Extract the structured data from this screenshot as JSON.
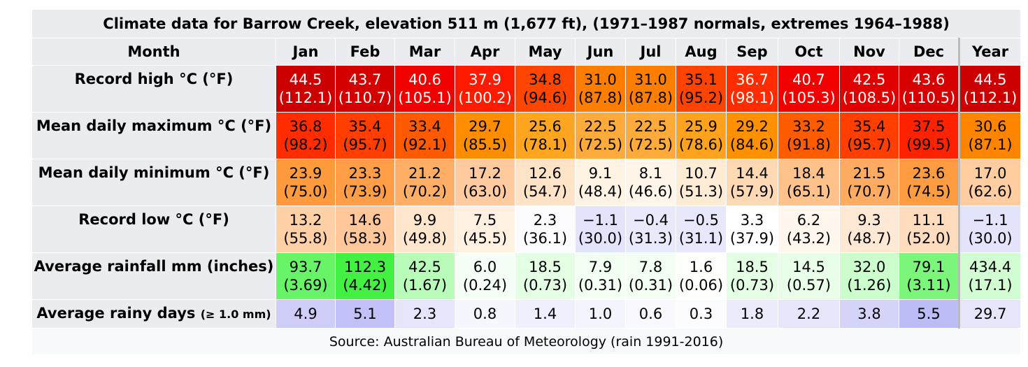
{
  "title": "Climate data for Barrow Creek, elevation 511 m (1,677 ft), (1971–1987 normals, extremes 1964–1988)",
  "header": {
    "month_label": "Month",
    "columns": [
      "Jan",
      "Feb",
      "Mar",
      "Apr",
      "May",
      "Jun",
      "Jul",
      "Aug",
      "Sep",
      "Oct",
      "Nov",
      "Dec",
      "Year"
    ]
  },
  "rows": [
    {
      "label": "Record high °C (°F)",
      "label_small": "",
      "cells": [
        {
          "c": "44.5",
          "f": "(112.1)",
          "bg": "#cc0000",
          "fg": "#ffffff"
        },
        {
          "c": "43.7",
          "f": "(110.7)",
          "bg": "#d40000",
          "fg": "#ffffff"
        },
        {
          "c": "40.6",
          "f": "(105.1)",
          "bg": "#f20000",
          "fg": "#ffffff"
        },
        {
          "c": "37.9",
          "f": "(100.2)",
          "bg": "#ff1a00",
          "fg": "#ffffff"
        },
        {
          "c": "34.8",
          "f": "(94.6)",
          "bg": "#ff4600",
          "fg": "#000000"
        },
        {
          "c": "31.0",
          "f": "(87.8)",
          "bg": "#ff7e00",
          "fg": "#000000"
        },
        {
          "c": "31.0",
          "f": "(87.8)",
          "bg": "#ff7e00",
          "fg": "#000000"
        },
        {
          "c": "35.1",
          "f": "(95.2)",
          "bg": "#ff4300",
          "fg": "#000000"
        },
        {
          "c": "36.7",
          "f": "(98.1)",
          "bg": "#ff2c00",
          "fg": "#ffffff"
        },
        {
          "c": "40.7",
          "f": "(105.3)",
          "bg": "#f20000",
          "fg": "#ffffff"
        },
        {
          "c": "42.5",
          "f": "(108.5)",
          "bg": "#e10000",
          "fg": "#ffffff"
        },
        {
          "c": "43.6",
          "f": "(110.5)",
          "bg": "#d60000",
          "fg": "#ffffff"
        },
        {
          "c": "44.5",
          "f": "(112.1)",
          "bg": "#cc0000",
          "fg": "#ffffff"
        }
      ]
    },
    {
      "label": "Mean daily maximum °C (°F)",
      "label_small": "",
      "cells": [
        {
          "c": "36.8",
          "f": "(98.2)",
          "bg": "#ff2c00",
          "fg": "#000000"
        },
        {
          "c": "35.4",
          "f": "(95.7)",
          "bg": "#ff3e00",
          "fg": "#000000"
        },
        {
          "c": "33.4",
          "f": "(92.1)",
          "bg": "#ff5a00",
          "fg": "#000000"
        },
        {
          "c": "29.7",
          "f": "(85.5)",
          "bg": "#ff8d00",
          "fg": "#000000"
        },
        {
          "c": "25.6",
          "f": "(78.1)",
          "bg": "#ffa520",
          "fg": "#000000"
        },
        {
          "c": "22.5",
          "f": "(72.5)",
          "bg": "#ffab3c",
          "fg": "#000000"
        },
        {
          "c": "22.5",
          "f": "(72.5)",
          "bg": "#ffab3c",
          "fg": "#000000"
        },
        {
          "c": "25.9",
          "f": "(78.6)",
          "bg": "#ffa21d",
          "fg": "#000000"
        },
        {
          "c": "29.2",
          "f": "(84.6)",
          "bg": "#ff9000",
          "fg": "#000000"
        },
        {
          "c": "33.2",
          "f": "(91.8)",
          "bg": "#ff5c00",
          "fg": "#000000"
        },
        {
          "c": "35.4",
          "f": "(95.7)",
          "bg": "#ff3e00",
          "fg": "#000000"
        },
        {
          "c": "37.5",
          "f": "(99.5)",
          "bg": "#ff2200",
          "fg": "#000000"
        },
        {
          "c": "30.6",
          "f": "(87.1)",
          "bg": "#ff8400",
          "fg": "#000000"
        }
      ]
    },
    {
      "label": "Mean daily minimum °C (°F)",
      "label_small": "",
      "cells": [
        {
          "c": "23.9",
          "f": "(75.0)",
          "bg": "#ff9a3d",
          "fg": "#000000"
        },
        {
          "c": "23.3",
          "f": "(73.9)",
          "bg": "#ff9e46",
          "fg": "#000000"
        },
        {
          "c": "21.2",
          "f": "(70.2)",
          "bg": "#ffae66",
          "fg": "#000000"
        },
        {
          "c": "17.2",
          "f": "(63.0)",
          "bg": "#ffcb9e",
          "fg": "#000000"
        },
        {
          "c": "12.6",
          "f": "(54.7)",
          "bg": "#ffe3c6",
          "fg": "#000000"
        },
        {
          "c": "9.1",
          "f": "(48.4)",
          "bg": "#fff3e3",
          "fg": "#000000"
        },
        {
          "c": "8.1",
          "f": "(46.6)",
          "bg": "#fff6e9",
          "fg": "#000000"
        },
        {
          "c": "10.7",
          "f": "(51.3)",
          "bg": "#ffecd5",
          "fg": "#000000"
        },
        {
          "c": "14.4",
          "f": "(57.9)",
          "bg": "#ffd9b3",
          "fg": "#000000"
        },
        {
          "c": "18.4",
          "f": "(65.1)",
          "bg": "#ffc28b",
          "fg": "#000000"
        },
        {
          "c": "21.5",
          "f": "(70.7)",
          "bg": "#ffab61",
          "fg": "#000000"
        },
        {
          "c": "23.6",
          "f": "(74.5)",
          "bg": "#ff9c41",
          "fg": "#000000"
        },
        {
          "c": "17.0",
          "f": "(62.6)",
          "bg": "#ffcd9f",
          "fg": "#000000"
        }
      ]
    },
    {
      "label": "Record low °C (°F)",
      "label_small": "",
      "cells": [
        {
          "c": "13.2",
          "f": "(55.8)",
          "bg": "#ffd0a6",
          "fg": "#000000"
        },
        {
          "c": "14.6",
          "f": "(58.3)",
          "bg": "#ffc79a",
          "fg": "#000000"
        },
        {
          "c": "9.9",
          "f": "(49.8)",
          "bg": "#ffe6cd",
          "fg": "#000000"
        },
        {
          "c": "7.5",
          "f": "(45.5)",
          "bg": "#fff1e2",
          "fg": "#000000"
        },
        {
          "c": "2.3",
          "f": "(36.1)",
          "bg": "#fcfcfe",
          "fg": "#000000"
        },
        {
          "c": "−1.1",
          "f": "(30.0)",
          "bg": "#e3e3fb",
          "fg": "#000000"
        },
        {
          "c": "−0.4",
          "f": "(31.3)",
          "bg": "#e9e9fc",
          "fg": "#000000"
        },
        {
          "c": "−0.5",
          "f": "(31.1)",
          "bg": "#e8e8fc",
          "fg": "#000000"
        },
        {
          "c": "3.3",
          "f": "(37.9)",
          "bg": "#ffffff",
          "fg": "#000000"
        },
        {
          "c": "6.2",
          "f": "(43.2)",
          "bg": "#fff7ee",
          "fg": "#000000"
        },
        {
          "c": "9.3",
          "f": "(48.7)",
          "bg": "#ffe9d4",
          "fg": "#000000"
        },
        {
          "c": "11.1",
          "f": "(52.0)",
          "bg": "#ffdcbd",
          "fg": "#000000"
        },
        {
          "c": "−1.1",
          "f": "(30.0)",
          "bg": "#e3e3fb",
          "fg": "#000000"
        }
      ]
    },
    {
      "label": "Average rainfall mm (inches)",
      "label_small": "",
      "cells": [
        {
          "c": "93.7",
          "f": "(3.69)",
          "bg": "#67f567",
          "fg": "#000000"
        },
        {
          "c": "112.3",
          "f": "(4.42)",
          "bg": "#43f143",
          "fg": "#000000"
        },
        {
          "c": "42.5",
          "f": "(1.67)",
          "bg": "#b9fbb9",
          "fg": "#000000"
        },
        {
          "c": "6.0",
          "f": "(0.24)",
          "bg": "#f6fff6",
          "fg": "#000000"
        },
        {
          "c": "18.5",
          "f": "(0.73)",
          "bg": "#e3fee3",
          "fg": "#000000"
        },
        {
          "c": "7.9",
          "f": "(0.31)",
          "bg": "#f3fff3",
          "fg": "#000000"
        },
        {
          "c": "7.8",
          "f": "(0.31)",
          "bg": "#f3fff3",
          "fg": "#000000"
        },
        {
          "c": "1.6",
          "f": "(0.06)",
          "bg": "#fdfffd",
          "fg": "#000000"
        },
        {
          "c": "18.5",
          "f": "(0.73)",
          "bg": "#e3fee3",
          "fg": "#000000"
        },
        {
          "c": "14.5",
          "f": "(0.57)",
          "bg": "#e9fee9",
          "fg": "#000000"
        },
        {
          "c": "32.0",
          "f": "(1.26)",
          "bg": "#ccfdcc",
          "fg": "#000000"
        },
        {
          "c": "79.1",
          "f": "(3.11)",
          "bg": "#7bf67b",
          "fg": "#000000"
        },
        {
          "c": "434.4",
          "f": "(17.1)",
          "bg": "#d2fdd2",
          "fg": "#000000"
        }
      ]
    },
    {
      "label": "Average rainy days",
      "label_small": "(≥ 1.0 mm)",
      "cells": [
        {
          "c": "4.9",
          "f": "",
          "bg": "#cdcdf8",
          "fg": "#000000"
        },
        {
          "c": "5.1",
          "f": "",
          "bg": "#c1c1f7",
          "fg": "#000000"
        },
        {
          "c": "2.3",
          "f": "",
          "bg": "#e5e5fb",
          "fg": "#000000"
        },
        {
          "c": "0.8",
          "f": "",
          "bg": "#f6f6fe",
          "fg": "#000000"
        },
        {
          "c": "1.4",
          "f": "",
          "bg": "#efeffd",
          "fg": "#000000"
        },
        {
          "c": "1.0",
          "f": "",
          "bg": "#f4f4fe",
          "fg": "#000000"
        },
        {
          "c": "0.6",
          "f": "",
          "bg": "#f8f8fe",
          "fg": "#000000"
        },
        {
          "c": "0.3",
          "f": "",
          "bg": "#fcfcff",
          "fg": "#000000"
        },
        {
          "c": "1.8",
          "f": "",
          "bg": "#ebebfc",
          "fg": "#000000"
        },
        {
          "c": "2.2",
          "f": "",
          "bg": "#e6e6fb",
          "fg": "#000000"
        },
        {
          "c": "3.8",
          "f": "",
          "bg": "#d4d4f9",
          "fg": "#000000"
        },
        {
          "c": "5.5",
          "f": "",
          "bg": "#bcbcf6",
          "fg": "#000000"
        },
        {
          "c": "29.7",
          "f": "",
          "bg": "#e6e6fb",
          "fg": "#000000"
        }
      ]
    }
  ],
  "source": "Source: Australian Bureau of Meteorology (rain 1991-2016)"
}
